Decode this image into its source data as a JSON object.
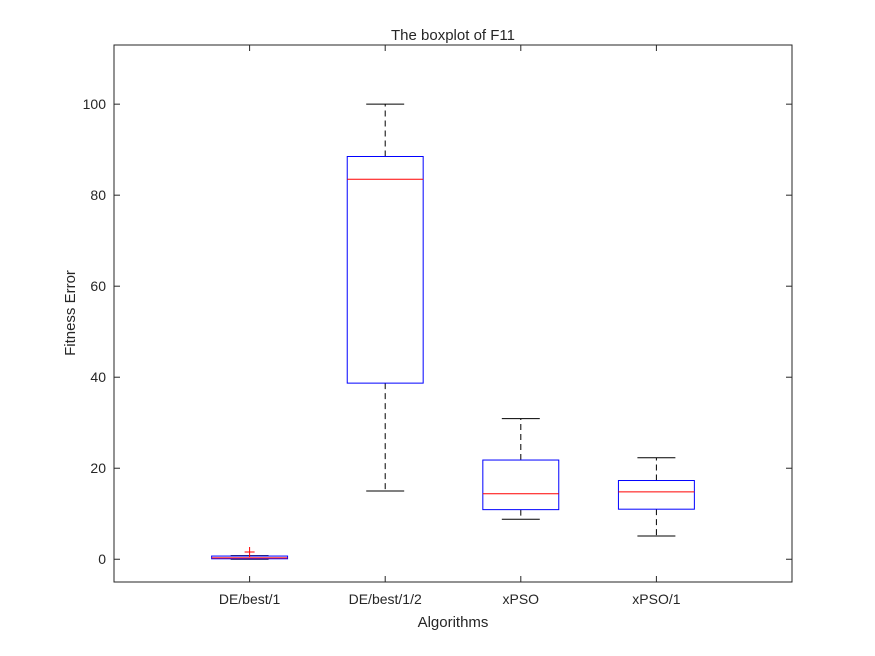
{
  "chart_data": {
    "type": "boxplot",
    "title": "The boxplot of F11",
    "xlabel": "Algorithms",
    "ylabel": "Fitness Error",
    "ylim": [
      -5,
      113
    ],
    "yticks": [
      0,
      20,
      40,
      60,
      80,
      100
    ],
    "ytick_labels": [
      "0",
      "20",
      "40",
      "60",
      "80",
      "100"
    ],
    "grid": false,
    "categories": [
      "DE/best/1",
      "DE/best/1/2",
      "xPSO",
      "xPSO/1"
    ],
    "boxes": [
      {
        "whisker_low": 0.0,
        "q1": 0.1,
        "median": 0.3,
        "q3": 0.7,
        "whisker_high": 0.8,
        "outliers": [
          1.6
        ]
      },
      {
        "whisker_low": 15.0,
        "q1": 38.7,
        "median": 83.5,
        "q3": 88.5,
        "whisker_high": 100.0,
        "outliers": []
      },
      {
        "whisker_low": 8.8,
        "q1": 10.9,
        "median": 14.4,
        "q3": 21.8,
        "whisker_high": 30.9,
        "outliers": []
      },
      {
        "whisker_low": 5.1,
        "q1": 11.0,
        "median": 14.8,
        "q3": 17.3,
        "whisker_high": 22.3,
        "outliers": []
      }
    ],
    "colors": {
      "box": "#0000ff",
      "median": "#ff0000",
      "whisker": "#000000",
      "outlier": "#ff0000",
      "axis": "#262626"
    }
  }
}
